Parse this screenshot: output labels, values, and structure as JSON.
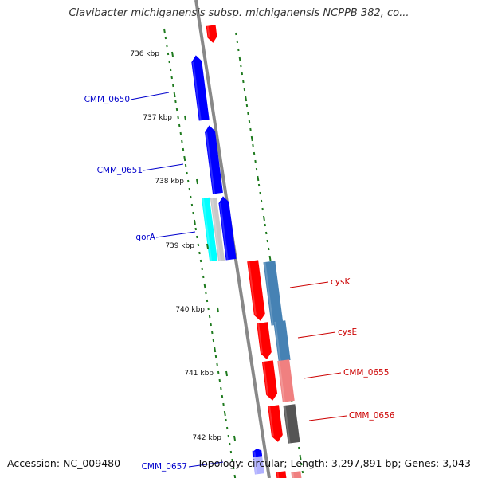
{
  "title": "Clavibacter michiganensis subsp. michiganensis NCPPB 382, co...",
  "footer": {
    "accession": "Accession: NC_009480",
    "summary": "Topology: circular; Length: 3,297,891 bp; Genes: 3,043"
  },
  "ticks": [
    "736 kbp",
    "737 kbp",
    "738 kbp",
    "739 kbp",
    "740 kbp",
    "741 kbp",
    "742 kbp"
  ],
  "genes": [
    {
      "label": "",
      "color": "#ff0000"
    },
    {
      "label": "CMM_0650",
      "color": "#0000ff"
    },
    {
      "label": "CMM_0651",
      "color": "#0000ff"
    },
    {
      "label": "qorA",
      "color": "#0000ff"
    },
    {
      "label": "cysK",
      "color": "#ff0000"
    },
    {
      "label": "cysE",
      "color": "#ff0000"
    },
    {
      "label": "CMM_0655",
      "color": "#ff0000"
    },
    {
      "label": "CMM_0656",
      "color": "#ff0000"
    },
    {
      "label": "CMM_0657",
      "color": "#0000ff"
    }
  ],
  "colors": {
    "backbone": "#888888",
    "tick_dots": "#1e7a1e",
    "blue_label": "#0000cc",
    "red_label": "#cc0000",
    "cyan": "#00ffff",
    "light_gray": "#c8c8c8",
    "steel_blue": "#4682b4",
    "salmon": "#f08080",
    "dark_gray": "#555555"
  }
}
